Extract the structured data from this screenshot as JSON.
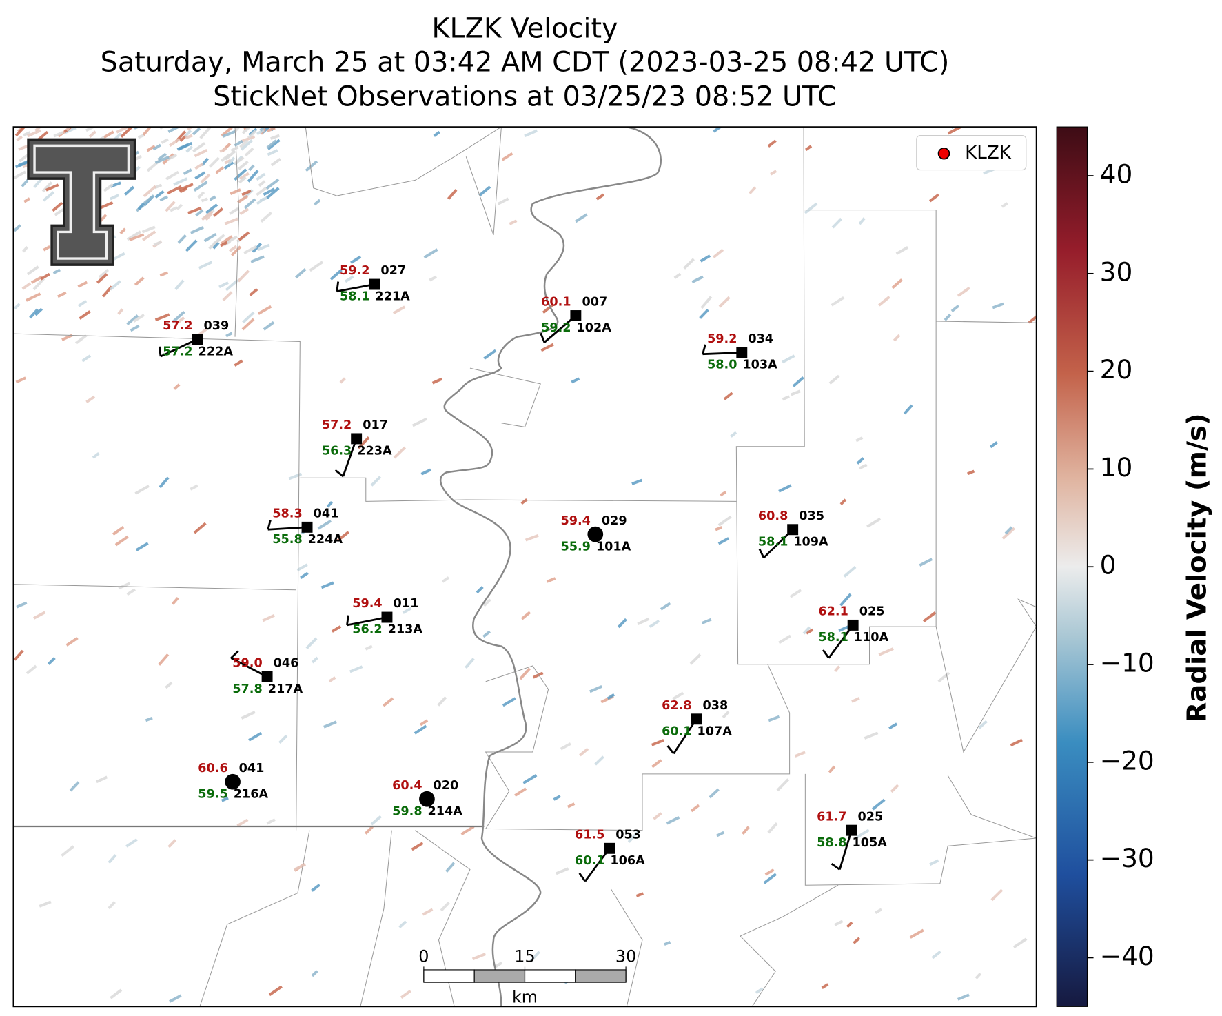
{
  "title": [
    "KLZK Velocity",
    "Saturday, March 25 at 03:42 AM CDT (2023-03-25 08:42 UTC)",
    "StickNet Observations at 03/25/23 08:52 UTC"
  ],
  "legend": "KLZK",
  "colorbar": {
    "label": "Radial Velocity (m/s)",
    "lim": [
      -45,
      45
    ],
    "ticks": [
      {
        "value": -40,
        "label": "−40"
      },
      {
        "value": -30,
        "label": "−30"
      },
      {
        "value": -20,
        "label": "−20"
      },
      {
        "value": -10,
        "label": "−10"
      },
      0,
      10,
      20,
      30,
      40
    ]
  },
  "scale_bar": {
    "ticks": [
      0,
      15,
      30
    ],
    "unit": "km"
  },
  "stations": [
    {
      "temperature": "59.2",
      "dewpoint": "58.1",
      "code": "027",
      "id": "221A"
    },
    {
      "temperature": "57.2",
      "dewpoint": "57.2",
      "code": "039",
      "id": "222A"
    },
    {
      "temperature": "60.1",
      "dewpoint": "59.2",
      "code": "007",
      "id": "102A"
    },
    {
      "temperature": "59.2",
      "dewpoint": "58.0",
      "code": "034",
      "id": "103A"
    },
    {
      "temperature": "57.2",
      "dewpoint": "56.3",
      "code": "017",
      "id": "223A"
    },
    {
      "temperature": "58.3",
      "dewpoint": "55.8",
      "code": "041",
      "id": "224A"
    },
    {
      "temperature": "59.4",
      "dewpoint": "55.9",
      "code": "029",
      "id": "101A"
    },
    {
      "temperature": "60.8",
      "dewpoint": "58.1",
      "code": "035",
      "id": "109A"
    },
    {
      "temperature": "59.4",
      "dewpoint": "56.2",
      "code": "011",
      "id": "213A"
    },
    {
      "temperature": "62.1",
      "dewpoint": "58.1",
      "code": "025",
      "id": "110A"
    },
    {
      "temperature": "59.0",
      "dewpoint": "57.8",
      "code": "046",
      "id": "217A"
    },
    {
      "temperature": "62.8",
      "dewpoint": "60.1",
      "code": "038",
      "id": "107A"
    },
    {
      "temperature": "60.6",
      "dewpoint": "59.5",
      "code": "041",
      "id": "216A"
    },
    {
      "temperature": "60.4",
      "dewpoint": "59.8",
      "code": "020",
      "id": "214A"
    },
    {
      "temperature": "61.5",
      "dewpoint": "60.1",
      "code": "053",
      "id": "106A"
    },
    {
      "temperature": "61.7",
      "dewpoint": "58.8",
      "code": "025",
      "id": "105A"
    }
  ]
}
